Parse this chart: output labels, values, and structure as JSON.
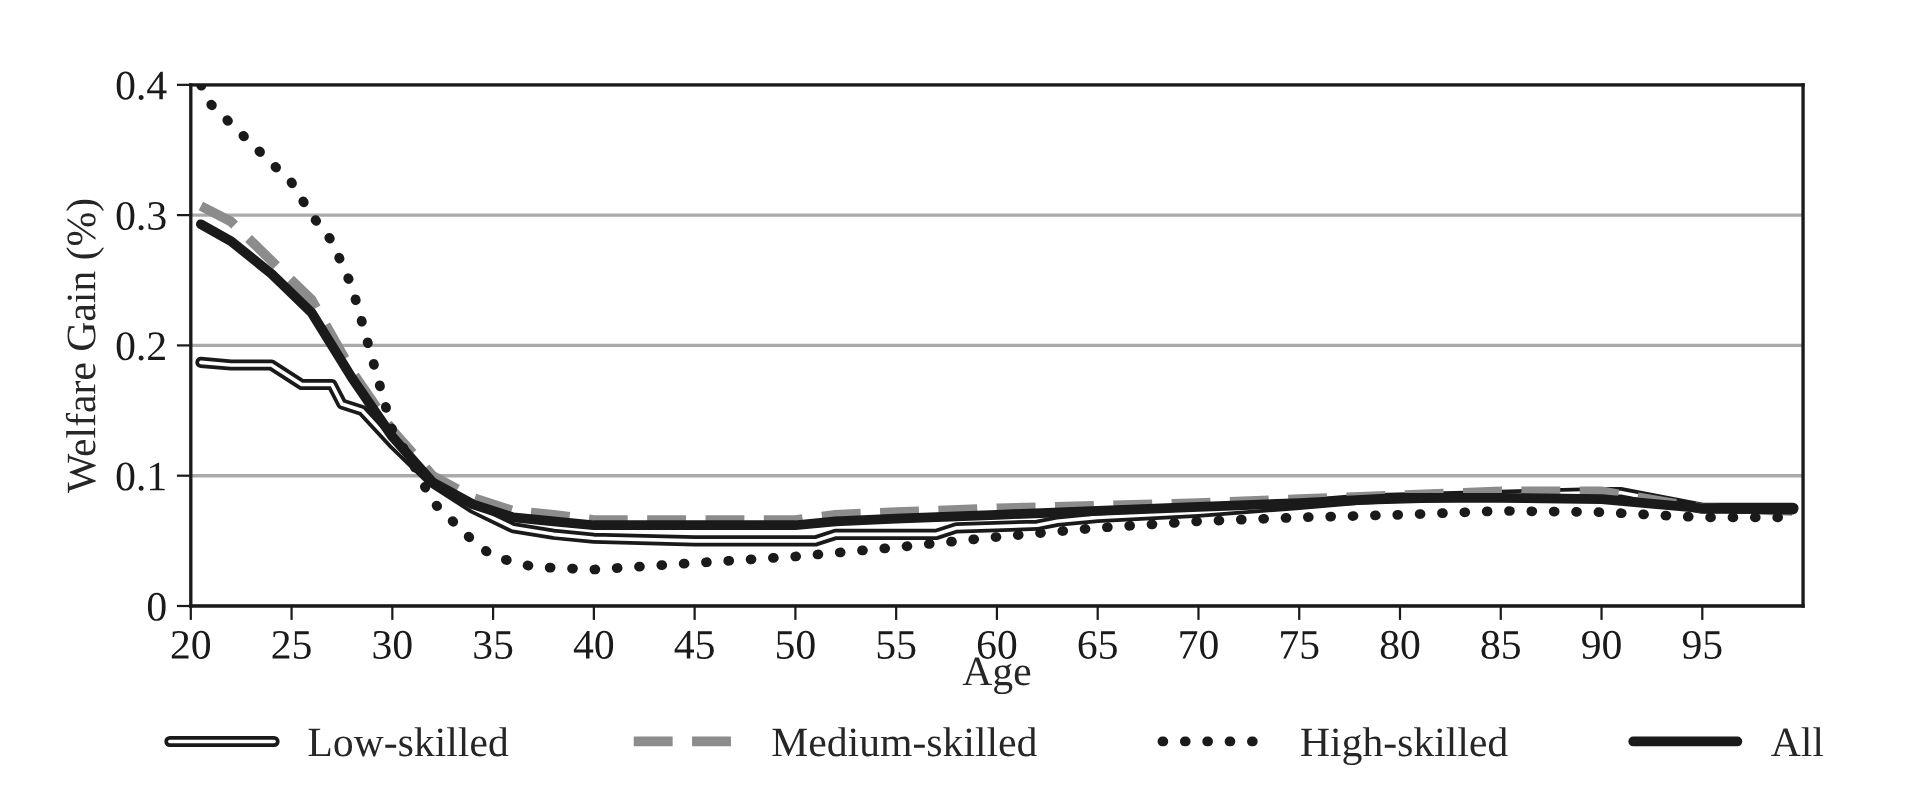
{
  "chart_data": {
    "type": "line",
    "xlabel": "Age",
    "ylabel": "Welfare Gain (%)",
    "xlim": [
      20,
      100
    ],
    "xticks": [
      20,
      25,
      30,
      35,
      40,
      45,
      50,
      55,
      60,
      65,
      70,
      75,
      80,
      85,
      90,
      95
    ],
    "ylim": [
      0,
      0.4
    ],
    "yticks": [
      0,
      0.1,
      0.2,
      0.3,
      0.4
    ],
    "grid": "y",
    "legend": "bottom",
    "marker": "none",
    "series": [
      {
        "name": "Low-skilled",
        "color": "#1a1a1a",
        "line_style": "solid",
        "x": [
          20.5,
          22,
          24,
          25.5,
          27,
          27.5,
          28.5,
          30,
          32,
          34,
          36,
          38,
          40,
          45,
          51,
          52,
          57,
          58,
          62,
          63,
          65,
          70,
          75,
          78,
          85,
          90,
          91,
          95,
          99.5
        ],
        "values": [
          0.187,
          0.185,
          0.185,
          0.17,
          0.17,
          0.155,
          0.15,
          0.125,
          0.095,
          0.075,
          0.06,
          0.055,
          0.052,
          0.05,
          0.05,
          0.055,
          0.055,
          0.06,
          0.062,
          0.065,
          0.068,
          0.072,
          0.078,
          0.082,
          0.085,
          0.087,
          0.087,
          0.075,
          0.075
        ]
      },
      {
        "name": "Medium-skilled",
        "color": "#8c8c8c",
        "line_style": "dashed",
        "x": [
          20.5,
          22,
          24,
          26,
          28,
          30,
          32,
          34,
          36,
          38,
          40,
          50,
          52,
          55,
          60,
          65,
          70,
          75,
          80,
          85,
          90,
          95,
          99.5
        ],
        "values": [
          0.307,
          0.295,
          0.265,
          0.235,
          0.18,
          0.135,
          0.1,
          0.083,
          0.073,
          0.07,
          0.066,
          0.066,
          0.07,
          0.072,
          0.075,
          0.077,
          0.079,
          0.082,
          0.085,
          0.088,
          0.088,
          0.075,
          0.073
        ]
      },
      {
        "name": "High-skilled",
        "color": "#1a1a1a",
        "line_style": "dotted",
        "x": [
          20.5,
          21,
          22,
          23,
          24,
          25,
          26,
          27,
          28,
          29,
          30,
          31,
          32,
          33,
          34,
          35,
          37,
          40,
          42,
          45,
          50,
          55,
          60,
          65,
          70,
          75,
          80,
          85,
          90,
          95,
          99.5
        ],
        "values": [
          0.4,
          0.385,
          0.37,
          0.355,
          0.34,
          0.325,
          0.3,
          0.28,
          0.245,
          0.19,
          0.135,
          0.11,
          0.08,
          0.065,
          0.05,
          0.038,
          0.03,
          0.028,
          0.03,
          0.033,
          0.038,
          0.045,
          0.053,
          0.06,
          0.065,
          0.068,
          0.07,
          0.073,
          0.072,
          0.068,
          0.068
        ]
      },
      {
        "name": "All",
        "color": "#1a1a1a",
        "line_style": "solid",
        "x": [
          20.5,
          22,
          24,
          26,
          27,
          28,
          30,
          32,
          34,
          36,
          38,
          40,
          50,
          52,
          55,
          60,
          65,
          70,
          75,
          80,
          85,
          90,
          95,
          99.5
        ],
        "values": [
          0.293,
          0.28,
          0.255,
          0.225,
          0.2,
          0.175,
          0.13,
          0.095,
          0.078,
          0.068,
          0.065,
          0.062,
          0.062,
          0.065,
          0.067,
          0.07,
          0.073,
          0.076,
          0.079,
          0.083,
          0.083,
          0.082,
          0.075,
          0.074
        ]
      }
    ]
  }
}
